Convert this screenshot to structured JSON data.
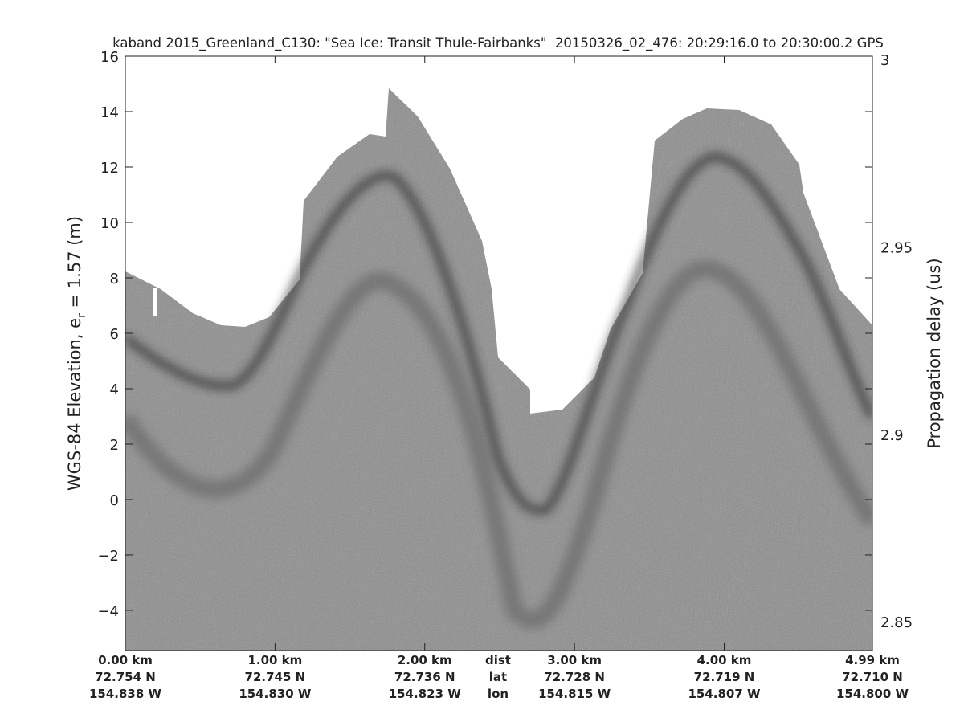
{
  "chart_data": {
    "type": "echogram",
    "title": "kaband 2015_Greenland_C130: \"Sea Ice: Transit Thule-Fairbanks\"  20150326_02_476: 20:29:16.0 to 20:30:00.2 GPS",
    "ylabel": {
      "text": "WGS-84 Elevation, e",
      "subscript": "r",
      "rest": " = 1.57 (m)"
    },
    "y2label": "Propagation delay (us)",
    "xlim": [
      0,
      4.99
    ],
    "xticks": [
      {
        "value": 0,
        "label": "0.00 km"
      },
      {
        "value": 1,
        "label": "1.00 km"
      },
      {
        "value": 2,
        "label": "2.00 km"
      },
      {
        "value": 3,
        "label": "3.00 km"
      },
      {
        "value": 4,
        "label": "4.00 km"
      },
      {
        "value": 4.99,
        "label": "4.99 km"
      }
    ],
    "xtick_lat": [
      "72.754 N",
      "72.745 N",
      "72.736 N",
      "72.728 N",
      "72.719 N",
      "72.710 N"
    ],
    "xtick_lon": [
      "154.838 W",
      "154.830 W",
      "154.823 W",
      "154.815 W",
      "154.807 W",
      "154.800 W"
    ],
    "row_labels": [
      "dist",
      "lat",
      "lon"
    ],
    "ylim": [
      -5.45,
      16.0
    ],
    "yticks": [
      {
        "value": -4,
        "label": "−4"
      },
      {
        "value": -2,
        "label": "−2"
      },
      0,
      2,
      4,
      6,
      8,
      10,
      12,
      14,
      16
    ],
    "y2lim": [
      2.8423,
      3.0009
    ],
    "y2ticks": [
      2.85,
      2.9,
      2.95,
      3
    ]
  }
}
